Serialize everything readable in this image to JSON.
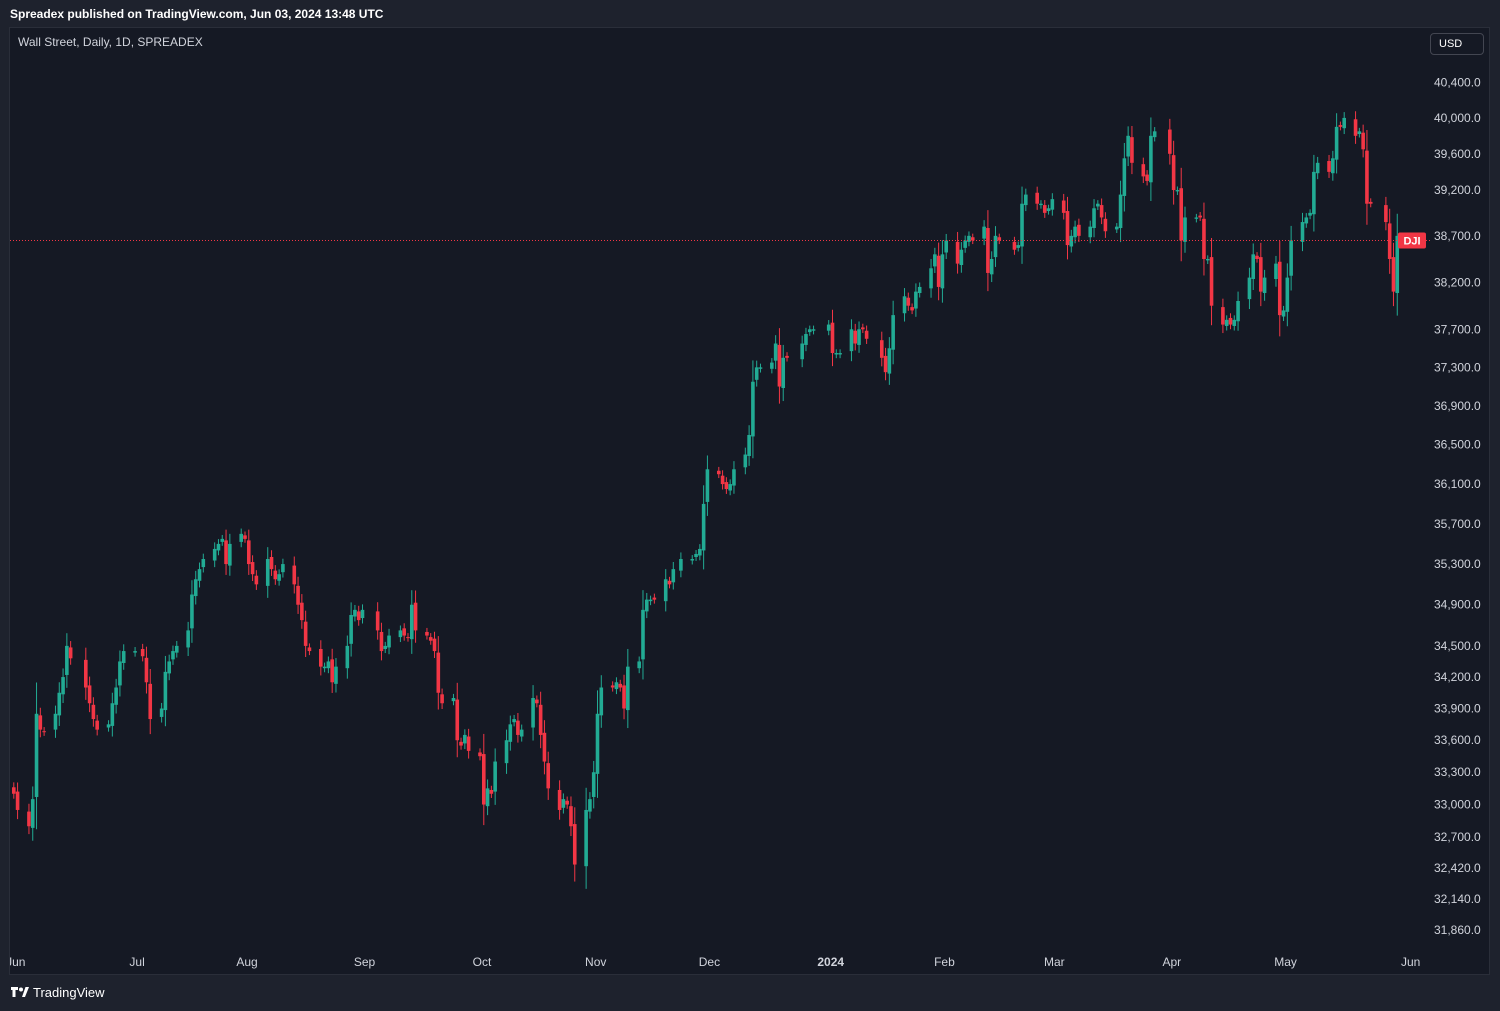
{
  "header": {
    "published": "Spreadex published on TradingView.com, Jun 03, 2024 13:48 UTC"
  },
  "chart_header": {
    "symbol": "Wall Street, Daily, 1D, SPREADEX",
    "currency_button": "USD"
  },
  "footer": {
    "brand": "TradingView"
  },
  "colors": {
    "up": "#22ab94",
    "down": "#f23645",
    "background": "#151924",
    "text": "#d1d4dc"
  },
  "chart_data": {
    "type": "candlestick",
    "title": "Wall Street, Daily, 1D, SPREADEX",
    "x_axis": {
      "ticks": [
        {
          "label": "Jun",
          "date": "2023-06-01"
        },
        {
          "label": "Jul",
          "date": "2023-07-03"
        },
        {
          "label": "Aug",
          "date": "2023-08-01"
        },
        {
          "label": "Sep",
          "date": "2023-09-01"
        },
        {
          "label": "Oct",
          "date": "2023-10-02"
        },
        {
          "label": "Nov",
          "date": "2023-11-01"
        },
        {
          "label": "Dec",
          "date": "2023-12-01"
        },
        {
          "label": "2024",
          "date": "2024-01-02",
          "bold": true
        },
        {
          "label": "Feb",
          "date": "2024-02-01"
        },
        {
          "label": "Mar",
          "date": "2024-03-01"
        },
        {
          "label": "Apr",
          "date": "2024-04-01"
        },
        {
          "label": "May",
          "date": "2024-05-01"
        },
        {
          "label": "Jun",
          "date": "2024-06-03"
        }
      ]
    },
    "y_axis": {
      "ticks": [
        31860,
        32140,
        32420,
        32700,
        33000,
        33300,
        33600,
        33900,
        34200,
        34500,
        34900,
        35300,
        35700,
        36100,
        36500,
        36900,
        37300,
        37700,
        38200,
        38700,
        39200,
        39600,
        40000,
        40400
      ],
      "tick_labels": [
        "31,860.0",
        "32,140.0",
        "32,420.0",
        "32,700.0",
        "33,000.0",
        "33,300.0",
        "33,600.0",
        "33,900.0",
        "34,200.0",
        "34,500.0",
        "34,900.0",
        "35,300.0",
        "35,700.0",
        "36,100.0",
        "36,500.0",
        "36,900.0",
        "37,300.0",
        "37,700.0",
        "38,200.0",
        "38,700.0",
        "39,200.0",
        "39,600.0",
        "40,000.0",
        "40,400.0"
      ],
      "range": [
        31700,
        40700
      ],
      "scale": "log"
    },
    "current_price_label": "DJI",
    "current_price": 38650,
    "grid": false,
    "closes_approx": [
      [
        "2023-06-01",
        33100
      ],
      [
        "2023-06-02",
        32950
      ],
      [
        "2023-06-05",
        32800
      ],
      [
        "2023-06-06",
        33050
      ],
      [
        "2023-06-07",
        33850
      ],
      [
        "2023-06-08",
        33700
      ],
      [
        "2023-06-09",
        33680
      ],
      [
        "2023-06-12",
        33850
      ],
      [
        "2023-06-13",
        34050
      ],
      [
        "2023-06-14",
        34200
      ],
      [
        "2023-06-15",
        34500
      ],
      [
        "2023-06-16",
        34380
      ],
      [
        "2023-06-20",
        34100
      ],
      [
        "2023-06-21",
        33950
      ],
      [
        "2023-06-22",
        33800
      ],
      [
        "2023-06-23",
        33700
      ],
      [
        "2023-06-26",
        33750
      ],
      [
        "2023-06-27",
        33950
      ],
      [
        "2023-06-28",
        34100
      ],
      [
        "2023-06-29",
        34350
      ],
      [
        "2023-06-30",
        34450
      ],
      [
        "2023-07-03",
        34450
      ],
      [
        "2023-07-05",
        34400
      ],
      [
        "2023-07-06",
        34150
      ],
      [
        "2023-07-07",
        33800
      ],
      [
        "2023-07-10",
        33900
      ],
      [
        "2023-07-11",
        34250
      ],
      [
        "2023-07-12",
        34350
      ],
      [
        "2023-07-13",
        34450
      ],
      [
        "2023-07-14",
        34500
      ],
      [
        "2023-07-17",
        34650
      ],
      [
        "2023-07-18",
        35000
      ],
      [
        "2023-07-19",
        35150
      ],
      [
        "2023-07-20",
        35250
      ],
      [
        "2023-07-21",
        35350
      ],
      [
        "2023-07-24",
        35450
      ],
      [
        "2023-07-25",
        35500
      ],
      [
        "2023-07-26",
        35550
      ],
      [
        "2023-07-27",
        35300
      ],
      [
        "2023-07-28",
        35500
      ],
      [
        "2023-07-31",
        35600
      ],
      [
        "2023-08-01",
        35550
      ],
      [
        "2023-08-02",
        35300
      ],
      [
        "2023-08-03",
        35200
      ],
      [
        "2023-08-04",
        35100
      ],
      [
        "2023-08-07",
        35350
      ],
      [
        "2023-08-08",
        35250
      ],
      [
        "2023-08-09",
        35150
      ],
      [
        "2023-08-10",
        35200
      ],
      [
        "2023-08-11",
        35300
      ],
      [
        "2023-08-14",
        35100
      ],
      [
        "2023-08-15",
        34900
      ],
      [
        "2023-08-16",
        34750
      ],
      [
        "2023-08-17",
        34500
      ],
      [
        "2023-08-18",
        34450
      ],
      [
        "2023-08-21",
        34300
      ],
      [
        "2023-08-22",
        34300
      ],
      [
        "2023-08-23",
        34350
      ],
      [
        "2023-08-24",
        34150
      ],
      [
        "2023-08-25",
        34300
      ],
      [
        "2023-08-28",
        34500
      ],
      [
        "2023-08-29",
        34800
      ],
      [
        "2023-08-30",
        34850
      ],
      [
        "2023-08-31",
        34750
      ],
      [
        "2023-09-01",
        34850
      ],
      [
        "2023-09-05",
        34650
      ],
      [
        "2023-09-06",
        34450
      ],
      [
        "2023-09-07",
        34500
      ],
      [
        "2023-09-08",
        34600
      ],
      [
        "2023-09-11",
        34650
      ],
      [
        "2023-09-12",
        34600
      ],
      [
        "2023-09-13",
        34580
      ],
      [
        "2023-09-14",
        34900
      ],
      [
        "2023-09-15",
        34650
      ],
      [
        "2023-09-18",
        34600
      ],
      [
        "2023-09-19",
        34550
      ],
      [
        "2023-09-20",
        34450
      ],
      [
        "2023-09-21",
        34050
      ],
      [
        "2023-09-22",
        33950
      ],
      [
        "2023-09-25",
        34000
      ],
      [
        "2023-09-26",
        33600
      ],
      [
        "2023-09-27",
        33550
      ],
      [
        "2023-09-28",
        33650
      ],
      [
        "2023-09-29",
        33500
      ],
      [
        "2023-10-02",
        33450
      ],
      [
        "2023-10-03",
        33000
      ],
      [
        "2023-10-04",
        33150
      ],
      [
        "2023-10-05",
        33100
      ],
      [
        "2023-10-06",
        33400
      ],
      [
        "2023-10-09",
        33600
      ],
      [
        "2023-10-10",
        33750
      ],
      [
        "2023-10-11",
        33800
      ],
      [
        "2023-10-12",
        33650
      ],
      [
        "2023-10-13",
        33700
      ],
      [
        "2023-10-16",
        34000
      ],
      [
        "2023-10-17",
        33950
      ],
      [
        "2023-10-18",
        33650
      ],
      [
        "2023-10-19",
        33400
      ],
      [
        "2023-10-20",
        33150
      ],
      [
        "2023-10-23",
        32950
      ],
      [
        "2023-10-24",
        33050
      ],
      [
        "2023-10-25",
        33000
      ],
      [
        "2023-10-26",
        32800
      ],
      [
        "2023-10-27",
        32450
      ],
      [
        "2023-10-30",
        32950
      ],
      [
        "2023-10-31",
        33050
      ],
      [
        "2023-11-01",
        33300
      ],
      [
        "2023-11-02",
        33850
      ],
      [
        "2023-11-03",
        34100
      ],
      [
        "2023-11-06",
        34100
      ],
      [
        "2023-11-07",
        34150
      ],
      [
        "2023-11-08",
        34100
      ],
      [
        "2023-11-09",
        33900
      ],
      [
        "2023-11-10",
        34300
      ],
      [
        "2023-11-13",
        34350
      ],
      [
        "2023-11-14",
        34850
      ],
      [
        "2023-11-15",
        34950
      ],
      [
        "2023-11-16",
        34950
      ],
      [
        "2023-11-17",
        34950
      ],
      [
        "2023-11-20",
        35150
      ],
      [
        "2023-11-21",
        35100
      ],
      [
        "2023-11-22",
        35250
      ],
      [
        "2023-11-24",
        35350
      ],
      [
        "2023-11-27",
        35350
      ],
      [
        "2023-11-28",
        35400
      ],
      [
        "2023-11-29",
        35450
      ],
      [
        "2023-11-30",
        35900
      ],
      [
        "2023-12-01",
        36250
      ],
      [
        "2023-12-04",
        36200
      ],
      [
        "2023-12-05",
        36100
      ],
      [
        "2023-12-06",
        36050
      ],
      [
        "2023-12-07",
        36100
      ],
      [
        "2023-12-08",
        36250
      ],
      [
        "2023-12-11",
        36400
      ],
      [
        "2023-12-12",
        36600
      ],
      [
        "2023-12-13",
        37150
      ],
      [
        "2023-12-14",
        37300
      ],
      [
        "2023-12-15",
        37300
      ],
      [
        "2023-12-18",
        37350
      ],
      [
        "2023-12-19",
        37550
      ],
      [
        "2023-12-20",
        37100
      ],
      [
        "2023-12-21",
        37400
      ],
      [
        "2023-12-22",
        37400
      ],
      [
        "2023-12-26",
        37550
      ],
      [
        "2023-12-27",
        37650
      ],
      [
        "2023-12-28",
        37700
      ],
      [
        "2023-12-29",
        37700
      ],
      [
        "2024-01-02",
        37750
      ],
      [
        "2024-01-03",
        37450
      ],
      [
        "2024-01-04",
        37450
      ],
      [
        "2024-01-05",
        37450
      ],
      [
        "2024-01-08",
        37700
      ],
      [
        "2024-01-09",
        37550
      ],
      [
        "2024-01-10",
        37700
      ],
      [
        "2024-01-11",
        37700
      ],
      [
        "2024-01-12",
        37600
      ],
      [
        "2024-01-16",
        37400
      ],
      [
        "2024-01-17",
        37250
      ],
      [
        "2024-01-18",
        37500
      ],
      [
        "2024-01-19",
        37850
      ],
      [
        "2024-01-22",
        38050
      ],
      [
        "2024-01-23",
        37950
      ],
      [
        "2024-01-24",
        37900
      ],
      [
        "2024-01-25",
        38100
      ],
      [
        "2024-01-26",
        38150
      ],
      [
        "2024-01-29",
        38350
      ],
      [
        "2024-01-30",
        38500
      ],
      [
        "2024-01-31",
        38150
      ],
      [
        "2024-02-01",
        38500
      ],
      [
        "2024-02-02",
        38650
      ],
      [
        "2024-02-05",
        38400
      ],
      [
        "2024-02-06",
        38550
      ],
      [
        "2024-02-07",
        38650
      ],
      [
        "2024-02-08",
        38700
      ],
      [
        "2024-02-09",
        38650
      ],
      [
        "2024-02-12",
        38800
      ],
      [
        "2024-02-13",
        38300
      ],
      [
        "2024-02-14",
        38450
      ],
      [
        "2024-02-15",
        38700
      ],
      [
        "2024-02-16",
        38650
      ],
      [
        "2024-02-20",
        38550
      ],
      [
        "2024-02-21",
        38600
      ],
      [
        "2024-02-22",
        39050
      ],
      [
        "2024-02-23",
        39150
      ],
      [
        "2024-02-26",
        39050
      ],
      [
        "2024-02-27",
        39050
      ],
      [
        "2024-02-28",
        38950
      ],
      [
        "2024-02-29",
        39000
      ],
      [
        "2024-03-01",
        39100
      ],
      [
        "2024-03-04",
        38950
      ],
      [
        "2024-03-05",
        38600
      ],
      [
        "2024-03-06",
        38700
      ],
      [
        "2024-03-07",
        38800
      ],
      [
        "2024-03-08",
        38700
      ],
      [
        "2024-03-11",
        38800
      ],
      [
        "2024-03-12",
        39000
      ],
      [
        "2024-03-13",
        39050
      ],
      [
        "2024-03-14",
        38900
      ],
      [
        "2024-03-15",
        38750
      ],
      [
        "2024-03-18",
        38800
      ],
      [
        "2024-03-19",
        39150
      ],
      [
        "2024-03-20",
        39550
      ],
      [
        "2024-03-21",
        39800
      ],
      [
        "2024-03-22",
        39500
      ],
      [
        "2024-03-25",
        39350
      ],
      [
        "2024-03-26",
        39300
      ],
      [
        "2024-03-27",
        39800
      ],
      [
        "2024-03-28",
        39850
      ],
      [
        "2024-04-01",
        39600
      ],
      [
        "2024-04-02",
        39200
      ],
      [
        "2024-04-03",
        39200
      ],
      [
        "2024-04-04",
        38650
      ],
      [
        "2024-04-05",
        38900
      ],
      [
        "2024-04-08",
        38900
      ],
      [
        "2024-04-09",
        38900
      ],
      [
        "2024-04-10",
        38450
      ],
      [
        "2024-04-11",
        38450
      ],
      [
        "2024-04-12",
        37950
      ],
      [
        "2024-04-15",
        37750
      ],
      [
        "2024-04-16",
        37800
      ],
      [
        "2024-04-17",
        37750
      ],
      [
        "2024-04-18",
        37800
      ],
      [
        "2024-04-19",
        38000
      ],
      [
        "2024-04-22",
        38250
      ],
      [
        "2024-04-23",
        38500
      ],
      [
        "2024-04-24",
        38450
      ],
      [
        "2024-04-25",
        38100
      ],
      [
        "2024-04-26",
        38250
      ],
      [
        "2024-04-29",
        38400
      ],
      [
        "2024-04-30",
        37850
      ],
      [
        "2024-05-01",
        37900
      ],
      [
        "2024-05-02",
        38250
      ],
      [
        "2024-05-03",
        38650
      ],
      [
        "2024-05-06",
        38850
      ],
      [
        "2024-05-07",
        38900
      ],
      [
        "2024-05-08",
        38950
      ],
      [
        "2024-05-09",
        39400
      ],
      [
        "2024-05-10",
        39500
      ],
      [
        "2024-05-13",
        39400
      ],
      [
        "2024-05-14",
        39550
      ],
      [
        "2024-05-15",
        39900
      ],
      [
        "2024-05-16",
        39900
      ],
      [
        "2024-05-17",
        40000
      ],
      [
        "2024-05-20",
        39800
      ],
      [
        "2024-05-21",
        39850
      ],
      [
        "2024-05-22",
        39650
      ],
      [
        "2024-05-23",
        39050
      ],
      [
        "2024-05-24",
        39050
      ],
      [
        "2024-05-28",
        38850
      ],
      [
        "2024-05-29",
        38450
      ],
      [
        "2024-05-30",
        38100
      ],
      [
        "2024-05-31",
        38700
      ],
      [
        "2024-06-03",
        38650
      ]
    ]
  }
}
